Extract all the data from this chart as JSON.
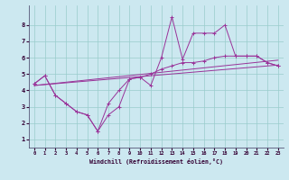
{
  "xlabel": "Windchill (Refroidissement éolien,°C)",
  "background_color": "#cce8f0",
  "grid_color": "#99cccc",
  "line_color": "#993399",
  "xlim": [
    -0.5,
    23.5
  ],
  "ylim": [
    0.5,
    9.2
  ],
  "xticks": [
    0,
    1,
    2,
    3,
    4,
    5,
    6,
    7,
    8,
    9,
    10,
    11,
    12,
    13,
    14,
    15,
    16,
    17,
    18,
    19,
    20,
    21,
    22,
    23
  ],
  "yticks": [
    1,
    2,
    3,
    4,
    5,
    6,
    7,
    8
  ],
  "line1_x": [
    0,
    1,
    2,
    3,
    4,
    5,
    6,
    7,
    8,
    9,
    10,
    11,
    12,
    13,
    14,
    15,
    16,
    17,
    18,
    19,
    20,
    21,
    22,
    23
  ],
  "line1_y": [
    4.4,
    4.9,
    3.7,
    3.2,
    2.7,
    2.5,
    1.5,
    2.5,
    3.0,
    4.7,
    4.8,
    4.3,
    6.0,
    8.5,
    5.9,
    7.5,
    7.5,
    7.5,
    8.0,
    6.1,
    6.1,
    6.1,
    5.7,
    5.5
  ],
  "line2_x": [
    0,
    1,
    2,
    3,
    4,
    5,
    6,
    7,
    8,
    9,
    10,
    11,
    12,
    13,
    14,
    15,
    16,
    17,
    18,
    19,
    20,
    21,
    22,
    23
  ],
  "line2_y": [
    4.4,
    4.9,
    3.7,
    3.2,
    2.7,
    2.5,
    1.5,
    3.2,
    4.0,
    4.7,
    4.8,
    5.0,
    5.3,
    5.5,
    5.7,
    5.7,
    5.8,
    6.0,
    6.1,
    6.1,
    6.1,
    6.1,
    5.7,
    5.5
  ],
  "line3_x": [
    0,
    23
  ],
  "line3_y": [
    4.3,
    5.55
  ],
  "line4_x": [
    0,
    23
  ],
  "line4_y": [
    4.3,
    5.85
  ],
  "xlabel_color": "#330033",
  "tick_color": "#330033"
}
